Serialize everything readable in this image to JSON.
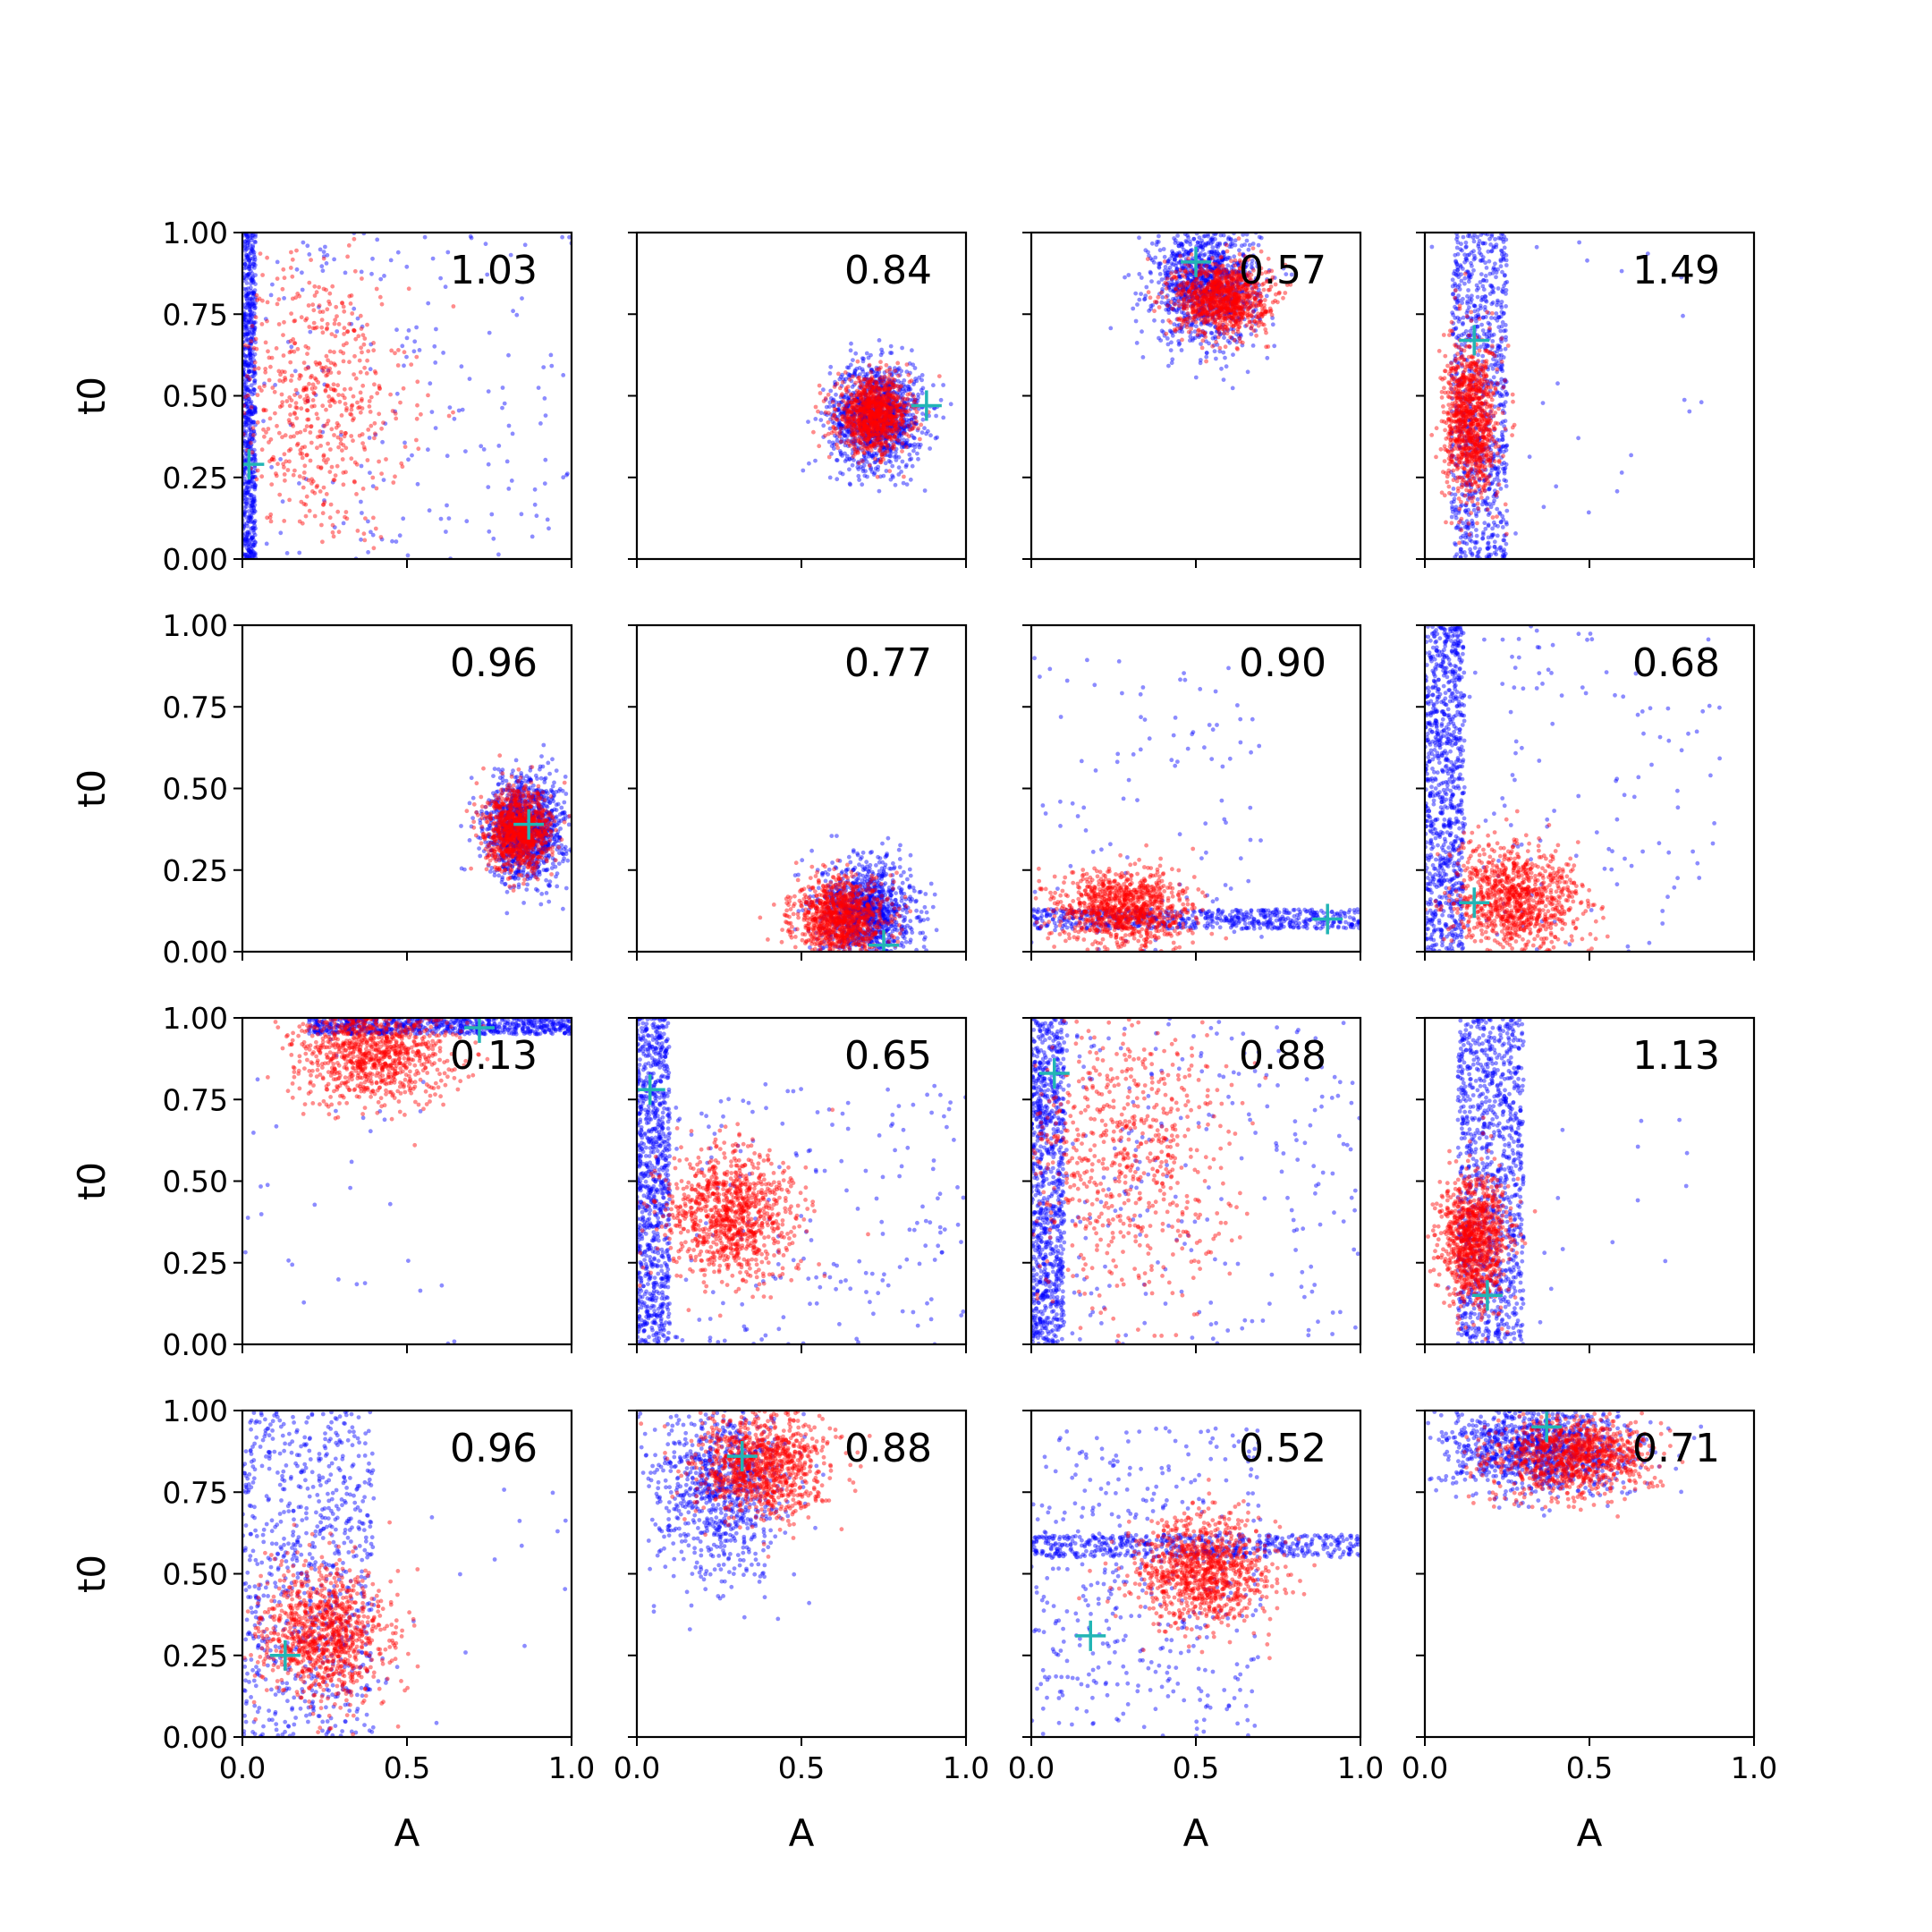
{
  "colors": {
    "series_a": "#0000ff",
    "series_b": "#ff0000",
    "marker": "#22b5b5",
    "axes": "#000000"
  },
  "chart_data": {
    "type": "scatter",
    "layout": "4x4 grid, shared axes",
    "xlabel": "A",
    "ylabel": "t0",
    "xlim": [
      0,
      1
    ],
    "ylim": [
      0,
      1
    ],
    "x_ticks": [
      "0.0",
      "0.5",
      "1.0"
    ],
    "y_ticks": [
      "0.00",
      "0.25",
      "0.50",
      "0.75",
      "1.00"
    ],
    "grid": false,
    "legend": "none",
    "series_colors": [
      "blue",
      "red"
    ],
    "marker_style": "cyan plus",
    "panels": [
      {
        "label": "1.03",
        "marker": [
          0.02,
          0.29
        ],
        "blue": {
          "type": "band",
          "x": [
            0.0,
            0.04
          ],
          "y": [
            0.0,
            1.0
          ],
          "n": 700,
          "scatter": [
            0.5,
            0.5,
            200
          ]
        },
        "red": {
          "type": "blob",
          "c": [
            0.22,
            0.48
          ],
          "s": [
            0.14,
            0.22
          ],
          "n": 600
        }
      },
      {
        "label": "0.84",
        "marker": [
          0.88,
          0.47
        ],
        "blue": {
          "type": "blob",
          "c": [
            0.73,
            0.44
          ],
          "s": [
            0.07,
            0.08
          ],
          "n": 1200
        },
        "red": {
          "type": "blob",
          "c": [
            0.72,
            0.44
          ],
          "s": [
            0.055,
            0.055
          ],
          "n": 1000
        }
      },
      {
        "label": "0.57",
        "marker": [
          0.5,
          0.91
        ],
        "blue": {
          "type": "blob",
          "c": [
            0.53,
            0.84
          ],
          "s": [
            0.08,
            0.09
          ],
          "n": 1100
        },
        "red": {
          "type": "blob",
          "c": [
            0.58,
            0.8
          ],
          "s": [
            0.07,
            0.055
          ],
          "n": 1000
        }
      },
      {
        "label": "1.49",
        "marker": [
          0.15,
          0.67
        ],
        "blue": {
          "type": "band",
          "x": [
            0.08,
            0.25
          ],
          "y": [
            0.0,
            1.0
          ],
          "n": 900,
          "scatter": [
            0.4,
            0.55,
            30
          ]
        },
        "red": {
          "type": "blob",
          "c": [
            0.14,
            0.42
          ],
          "s": [
            0.04,
            0.12
          ],
          "n": 1000
        }
      },
      {
        "label": "0.96",
        "marker": [
          0.87,
          0.39
        ],
        "blue": {
          "type": "blob",
          "c": [
            0.86,
            0.38
          ],
          "s": [
            0.06,
            0.08
          ],
          "n": 1200
        },
        "red": {
          "type": "blob",
          "c": [
            0.84,
            0.37
          ],
          "s": [
            0.05,
            0.06
          ],
          "n": 1000
        }
      },
      {
        "label": "0.77",
        "marker": [
          0.75,
          0.02
        ],
        "blue": {
          "type": "blob",
          "c": [
            0.7,
            0.12
          ],
          "s": [
            0.07,
            0.08
          ],
          "n": 1100
        },
        "red": {
          "type": "blob",
          "c": [
            0.62,
            0.1
          ],
          "s": [
            0.07,
            0.06
          ],
          "n": 1000
        }
      },
      {
        "label": "0.90",
        "marker": [
          0.9,
          0.1
        ],
        "blue": {
          "type": "band",
          "x": [
            0.0,
            1.0
          ],
          "y": [
            0.07,
            0.13
          ],
          "n": 600,
          "scatter": [
            0.2,
            0.4,
            150
          ]
        },
        "red": {
          "type": "blob",
          "c": [
            0.28,
            0.13
          ],
          "s": [
            0.1,
            0.06
          ],
          "n": 1000
        }
      },
      {
        "label": "0.68",
        "marker": [
          0.15,
          0.15
        ],
        "blue": {
          "type": "band",
          "x": [
            0.0,
            0.12
          ],
          "y": [
            0.0,
            1.0
          ],
          "n": 900,
          "scatter": [
            0.4,
            0.5,
            150
          ]
        },
        "red": {
          "type": "blob",
          "c": [
            0.28,
            0.16
          ],
          "s": [
            0.1,
            0.08
          ],
          "n": 1000
        }
      },
      {
        "label": "0.13",
        "marker": [
          0.72,
          0.97
        ],
        "blue": {
          "type": "band",
          "x": [
            0.2,
            1.0
          ],
          "y": [
            0.95,
            1.0
          ],
          "n": 700,
          "scatter": [
            0.15,
            0.45,
            60
          ]
        },
        "red": {
          "type": "blob",
          "c": [
            0.4,
            0.9
          ],
          "s": [
            0.12,
            0.08
          ],
          "n": 1000
        }
      },
      {
        "label": "0.65",
        "marker": [
          0.04,
          0.78
        ],
        "blue": {
          "type": "band",
          "x": [
            0.0,
            0.1
          ],
          "y": [
            0.0,
            1.0
          ],
          "n": 900,
          "scatter": [
            0.5,
            0.3,
            250
          ]
        },
        "red": {
          "type": "blob",
          "c": [
            0.28,
            0.4
          ],
          "s": [
            0.1,
            0.1
          ],
          "n": 1000
        }
      },
      {
        "label": "0.88",
        "marker": [
          0.07,
          0.83
        ],
        "blue": {
          "type": "band",
          "x": [
            0.0,
            0.1
          ],
          "y": [
            0.0,
            1.0
          ],
          "n": 900,
          "scatter": [
            0.5,
            0.5,
            250
          ]
        },
        "red": {
          "type": "blob",
          "c": [
            0.28,
            0.55
          ],
          "s": [
            0.16,
            0.22
          ],
          "n": 700
        }
      },
      {
        "label": "1.13",
        "marker": [
          0.19,
          0.15
        ],
        "blue": {
          "type": "band",
          "x": [
            0.1,
            0.3
          ],
          "y": [
            0.0,
            1.0
          ],
          "n": 1100,
          "scatter": [
            0.3,
            0.2,
            30
          ]
        },
        "red": {
          "type": "blob",
          "c": [
            0.15,
            0.32
          ],
          "s": [
            0.05,
            0.1
          ],
          "n": 1000
        }
      },
      {
        "label": "0.96",
        "marker": [
          0.13,
          0.25
        ],
        "blue": {
          "type": "band",
          "x": [
            0.0,
            0.4
          ],
          "y": [
            0.0,
            1.0
          ],
          "n": 800,
          "scatter": [
            0.8,
            0.27,
            40
          ]
        },
        "red": {
          "type": "blob",
          "c": [
            0.25,
            0.32
          ],
          "s": [
            0.1,
            0.1
          ],
          "n": 1000
        }
      },
      {
        "label": "0.88",
        "marker": [
          0.32,
          0.86
        ],
        "blue": {
          "type": "blob",
          "c": [
            0.25,
            0.78
          ],
          "s": [
            0.1,
            0.15
          ],
          "n": 900
        },
        "red": {
          "type": "blob",
          "c": [
            0.38,
            0.83
          ],
          "s": [
            0.1,
            0.08
          ],
          "n": 1000
        }
      },
      {
        "label": "0.52",
        "marker": [
          0.18,
          0.31
        ],
        "blue": {
          "type": "band",
          "x": [
            0.0,
            1.0
          ],
          "y": [
            0.55,
            0.62
          ],
          "n": 500,
          "scatter": [
            0.2,
            0.45,
            600
          ]
        },
        "red": {
          "type": "blob",
          "c": [
            0.52,
            0.5
          ],
          "s": [
            0.1,
            0.08
          ],
          "n": 1000
        }
      },
      {
        "label": "0.71",
        "marker": [
          0.37,
          0.95
        ],
        "blue": {
          "type": "blob",
          "c": [
            0.35,
            0.88
          ],
          "s": [
            0.15,
            0.07
          ],
          "n": 1100
        },
        "red": {
          "type": "blob",
          "c": [
            0.45,
            0.86
          ],
          "s": [
            0.12,
            0.06
          ],
          "n": 1000
        }
      }
    ]
  }
}
